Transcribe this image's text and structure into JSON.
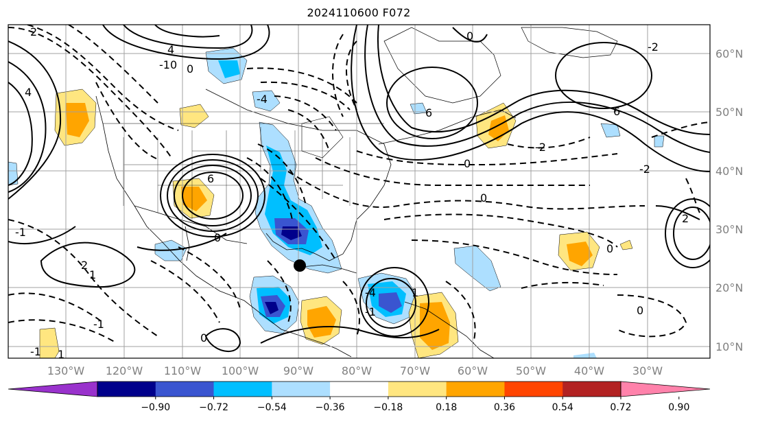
{
  "title": "2024110600 F072",
  "map": {
    "lon_labels": [
      "130°W",
      "120°W",
      "110°W",
      "100°W",
      "90°W",
      "80°W",
      "70°W",
      "60°W",
      "50°W",
      "40°W",
      "30°W"
    ],
    "lat_labels": [
      "60°N",
      "50°N",
      "40°N",
      "30°N",
      "20°N",
      "10°N"
    ],
    "contour_labels": [
      "2",
      "4",
      "-10",
      "0",
      "-4",
      "0",
      "6",
      "6",
      "-2",
      "0",
      "0",
      "-2",
      "6",
      "4",
      "0",
      "-1",
      "2",
      "1",
      "-1",
      "0",
      "-4",
      "-1",
      "1",
      "0",
      "0",
      "-2",
      "2",
      "-1",
      "1"
    ],
    "colors": {
      "land_border": "#000000",
      "grid": "#a0a0a0"
    }
  },
  "colorbar": {
    "ticks": [
      "−0.90",
      "−0.72",
      "−0.54",
      "−0.36",
      "−0.18",
      "0.18",
      "0.36",
      "0.54",
      "0.72",
      "0.90"
    ],
    "colors": [
      "#9932cc",
      "#00008b",
      "#3a55d0",
      "#00bfff",
      "#addfff",
      "#ffffff",
      "#ffe680",
      "#ffa500",
      "#ff4500",
      "#b22222",
      "#ff82ab"
    ]
  }
}
